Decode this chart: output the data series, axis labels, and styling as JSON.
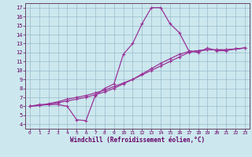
{
  "xlabel": "Windchill (Refroidissement éolien,°C)",
  "background_color": "#cce8ee",
  "grid_color": "#99bbcc",
  "line_color": "#993399",
  "x_ticks": [
    0,
    1,
    2,
    3,
    4,
    5,
    6,
    7,
    8,
    9,
    10,
    11,
    12,
    13,
    14,
    15,
    16,
    17,
    18,
    19,
    20,
    21,
    22,
    23
  ],
  "y_ticks": [
    4,
    5,
    6,
    7,
    8,
    9,
    10,
    11,
    12,
    13,
    14,
    15,
    16,
    17
  ],
  "ylim": [
    3.5,
    17.5
  ],
  "xlim": [
    -0.5,
    23.5
  ],
  "curve1_x": [
    0,
    1,
    2,
    3,
    4,
    5,
    6,
    7,
    8,
    9,
    10,
    11,
    12,
    13,
    14,
    15,
    16,
    17,
    18,
    19,
    20,
    21,
    22,
    23
  ],
  "curve1_y": [
    6.0,
    6.2,
    6.2,
    6.2,
    6.0,
    4.5,
    4.4,
    7.2,
    8.0,
    8.5,
    11.8,
    13.0,
    15.2,
    17.0,
    17.0,
    15.2,
    14.2,
    12.2,
    12.0,
    12.5,
    12.2,
    12.2,
    12.4,
    12.5
  ],
  "curve2_x": [
    0,
    1,
    2,
    3,
    4,
    5,
    6,
    7,
    8,
    9,
    10,
    11,
    12,
    13,
    14,
    15,
    16,
    17,
    18,
    19,
    20,
    21,
    22,
    23
  ],
  "curve2_y": [
    6.0,
    6.1,
    6.3,
    6.5,
    6.8,
    7.0,
    7.2,
    7.5,
    7.8,
    8.2,
    8.6,
    9.0,
    9.5,
    10.0,
    10.5,
    11.0,
    11.5,
    12.0,
    12.2,
    12.3,
    12.3,
    12.3,
    12.4,
    12.5
  ],
  "curve3_x": [
    0,
    1,
    2,
    3,
    4,
    5,
    6,
    7,
    8,
    9,
    10,
    11,
    12,
    13,
    14,
    15,
    16,
    17,
    18,
    19,
    20,
    21,
    22,
    23
  ],
  "curve3_y": [
    6.0,
    6.1,
    6.2,
    6.4,
    6.6,
    6.8,
    7.0,
    7.3,
    7.6,
    8.0,
    8.5,
    9.0,
    9.6,
    10.2,
    10.8,
    11.3,
    11.8,
    12.1,
    12.2,
    12.3,
    12.3,
    12.3,
    12.4,
    12.5
  ]
}
